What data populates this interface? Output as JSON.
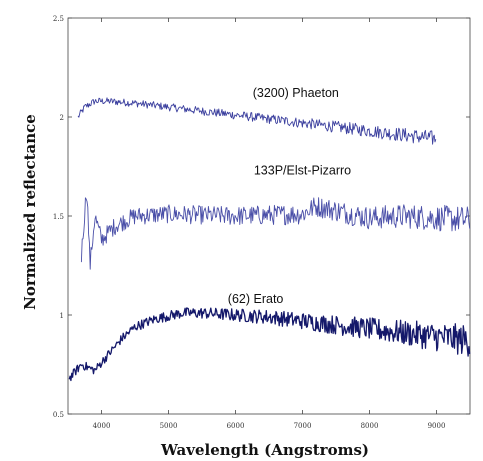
{
  "chart_data": {
    "type": "line",
    "title": "",
    "xlabel": "Wavelength (Angstroms)",
    "ylabel": "Normalized reflectance",
    "xlim": [
      3500,
      9500
    ],
    "ylim": [
      0.5,
      2.5
    ],
    "x_ticks": [
      4000,
      5000,
      6000,
      7000,
      8000,
      9000
    ],
    "y_ticks": [
      {
        "value": 0.5,
        "label": "0.5"
      },
      {
        "value": 1.0,
        "label": "1"
      },
      {
        "value": 1.5,
        "label": "1.5"
      },
      {
        "value": 2.0,
        "label": "2"
      },
      {
        "value": 2.5,
        "label": "2.5"
      }
    ],
    "grid": false,
    "series": [
      {
        "name": "(3200) Phaeton",
        "color": "#3b3f9e",
        "noise": 0.018,
        "noise_growth": 0.022,
        "x": [
          3650,
          3750,
          3900,
          4100,
          4500,
          5000,
          5500,
          6000,
          6500,
          7000,
          7500,
          8000,
          8500,
          9000
        ],
        "y": [
          2.0,
          2.05,
          2.08,
          2.08,
          2.07,
          2.05,
          2.03,
          2.01,
          1.99,
          1.97,
          1.95,
          1.93,
          1.91,
          1.89
        ]
      },
      {
        "name": "133P/Elst-Pizarro",
        "color": "#4a4fa8",
        "noise": 0.045,
        "noise_growth": 0.025,
        "x": [
          3700,
          3780,
          3830,
          3900,
          4000,
          4200,
          4500,
          5000,
          6000,
          7000,
          7200,
          8000,
          8500,
          9000,
          9500
        ],
        "y": [
          1.3,
          1.65,
          1.25,
          1.5,
          1.38,
          1.45,
          1.5,
          1.51,
          1.5,
          1.51,
          1.55,
          1.49,
          1.5,
          1.49,
          1.48
        ]
      },
      {
        "name": "(62) Erato",
        "color": "#14186a",
        "noise": 0.022,
        "noise_growth": 0.06,
        "x": [
          3520,
          3700,
          3900,
          4100,
          4300,
          4500,
          4800,
          5200,
          5500,
          6000,
          6500,
          7000,
          7500,
          8000,
          8500,
          9000,
          9500
        ],
        "y": [
          0.68,
          0.75,
          0.72,
          0.8,
          0.88,
          0.94,
          0.98,
          1.01,
          1.01,
          1.0,
          0.99,
          0.97,
          0.95,
          0.93,
          0.91,
          0.89,
          0.87
        ]
      }
    ],
    "annotations": [
      {
        "text": "(3200) Phaeton",
        "x": 6900,
        "y": 2.1
      },
      {
        "text": "133P/Elst-Pizarro",
        "x": 7000,
        "y": 1.71
      },
      {
        "text": "(62) Erato",
        "x": 6300,
        "y": 1.06
      }
    ]
  }
}
